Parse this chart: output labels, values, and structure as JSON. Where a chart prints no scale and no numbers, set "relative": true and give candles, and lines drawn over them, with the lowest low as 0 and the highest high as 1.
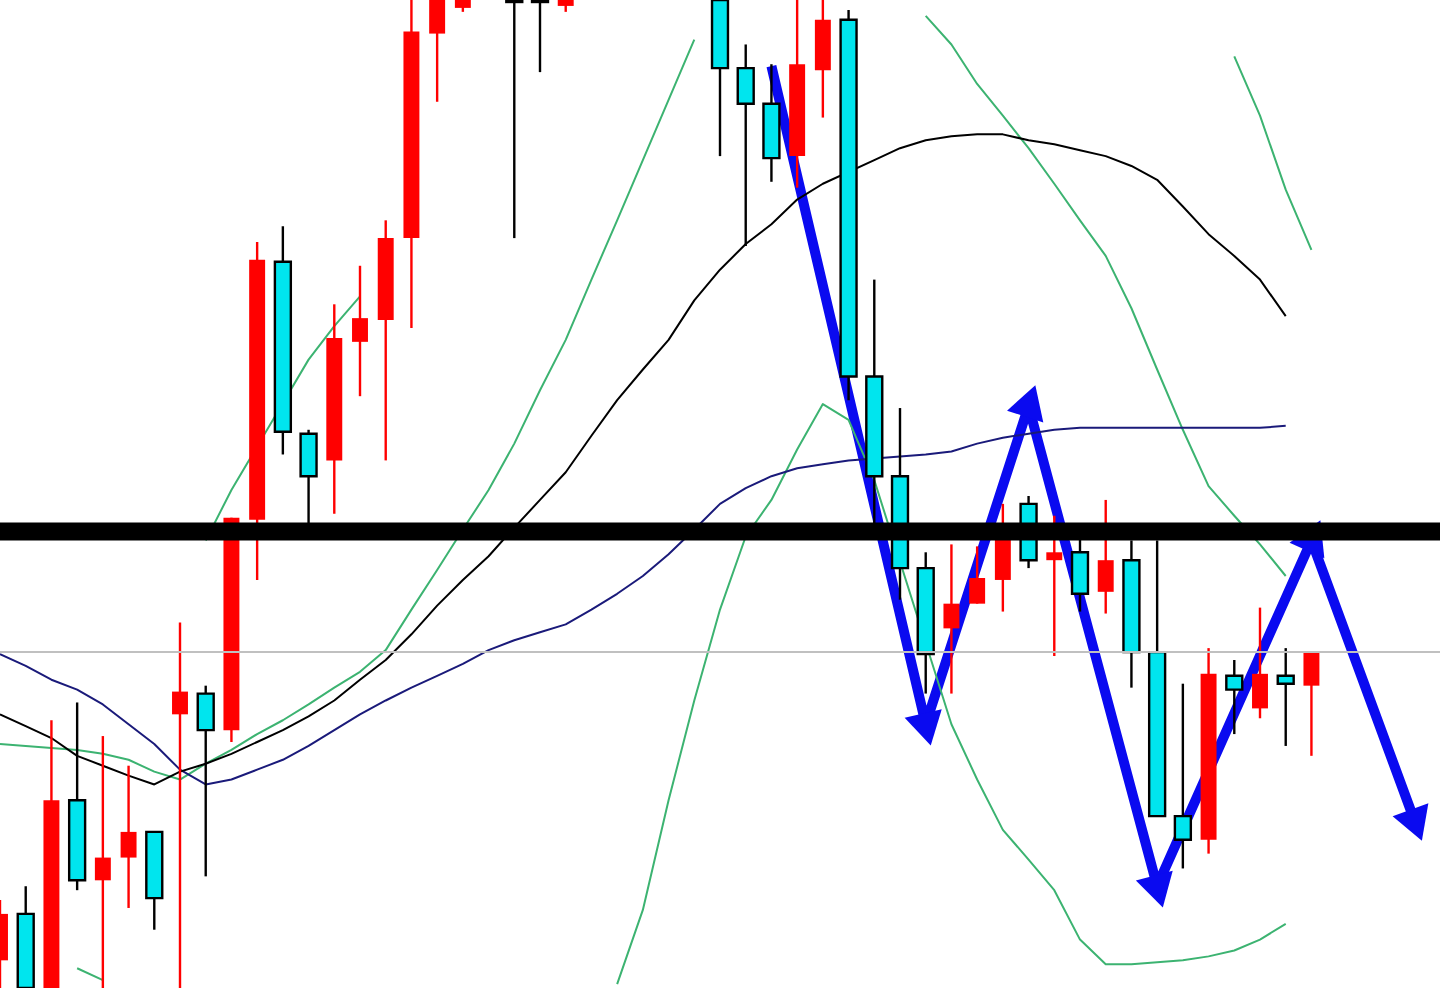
{
  "chart_data": {
    "type": "candlestick",
    "relative": true,
    "grid": false,
    "legend": false,
    "tick_labels": false,
    "categories": [
      null,
      null,
      null,
      null,
      null,
      null,
      null,
      null,
      null,
      null,
      null,
      null,
      null,
      null,
      null,
      null,
      null,
      null,
      null,
      null,
      null,
      null,
      null,
      null,
      null,
      null,
      null,
      null,
      null,
      null,
      null,
      null,
      null,
      null,
      null,
      null,
      null,
      null,
      null,
      null,
      null,
      null,
      null,
      null,
      null,
      null,
      null,
      null,
      null,
      null,
      null,
      null,
      null,
      null,
      null,
      null,
      null
    ],
    "ohlc": [
      [
        0.028,
        0.089,
        0,
        0.075
      ],
      [
        0.075,
        0.103,
        0,
        0
      ],
      [
        0,
        0.271,
        0,
        0.19
      ],
      [
        0.19,
        0.289,
        0.099,
        0.109
      ],
      [
        0.109,
        0.255,
        0,
        0.132
      ],
      [
        0.132,
        0.225,
        0.081,
        0.158
      ],
      [
        0.158,
        0.158,
        0.059,
        0.091
      ],
      [
        0.277,
        0.37,
        0,
        0.3
      ],
      [
        0.298,
        0.306,
        0.113,
        0.261
      ],
      [
        0.261,
        0.476,
        0.249,
        0.476
      ],
      [
        0.474,
        0.755,
        0.413,
        0.737
      ],
      [
        0.735,
        0.771,
        0.54,
        0.563
      ],
      [
        0.561,
        0.565,
        0.47,
        0.518
      ],
      [
        0.534,
        0.692,
        0.48,
        0.658
      ],
      [
        0.654,
        0.731,
        0.599,
        0.678
      ],
      [
        0.676,
        0.777,
        0.534,
        0.759
      ],
      [
        0.759,
        1,
        0.668,
        0.968
      ],
      [
        0.966,
        1,
        0.897,
        1
      ],
      [
        0.992,
        1,
        0.988,
        1
      ],
      null,
      [
        1,
        1,
        0.759,
        1
      ],
      [
        1,
        1,
        0.927,
        1
      ],
      [
        0.994,
        1,
        0.988,
        1
      ],
      null,
      null,
      null,
      null,
      null,
      [
        1,
        1,
        0.842,
        0.931
      ],
      [
        0.931,
        0.955,
        0.751,
        0.895
      ],
      [
        0.895,
        0.935,
        0.816,
        0.84
      ],
      [
        0.842,
        1,
        0.81,
        0.935
      ],
      [
        0.929,
        1,
        0.881,
        0.98
      ],
      [
        0.98,
        0.99,
        0.595,
        0.619
      ],
      [
        0.619,
        0.717,
        0.47,
        0.518
      ],
      [
        0.518,
        0.587,
        0.393,
        0.425
      ],
      [
        0.425,
        0.441,
        0.298,
        0.338
      ],
      [
        0.364,
        0.449,
        0.298,
        0.389
      ],
      [
        0.389,
        0.447,
        0.389,
        0.415
      ],
      [
        0.413,
        0.49,
        0.381,
        0.455
      ],
      [
        0.49,
        0.498,
        0.425,
        0.433
      ],
      [
        0.433,
        0.478,
        0.336,
        0.441
      ],
      [
        0.441,
        0.457,
        0.381,
        0.399
      ],
      [
        0.401,
        0.494,
        0.379,
        0.433
      ],
      [
        0.433,
        0.453,
        0.304,
        0.34
      ],
      [
        0.34,
        0.453,
        0.174,
        0.174
      ],
      [
        0.174,
        0.308,
        0.121,
        0.15
      ],
      [
        0.15,
        0.344,
        0.136,
        0.318
      ],
      [
        0.316,
        0.332,
        0.257,
        0.302
      ],
      [
        0.283,
        0.385,
        0.273,
        0.318
      ],
      [
        0.316,
        0.344,
        0.245,
        0.308
      ],
      [
        0.306,
        0.34,
        0.235,
        0.34
      ],
      null,
      null,
      null,
      null,
      null
    ],
    "colors": [
      "#ff0000",
      "#00e5ee",
      "#ff0000",
      "#00e5ee",
      "#ff0000",
      "#ff0000",
      "#00e5ee",
      "#ff0000",
      "#00e5ee",
      "#ff0000",
      "#ff0000",
      "#00e5ee",
      "#00e5ee",
      "#ff0000",
      "#ff0000",
      "#ff0000",
      "#ff0000",
      "#ff0000",
      "#ff0000",
      null,
      "#00e5ee",
      "#00e5ee",
      "#ff0000",
      null,
      null,
      null,
      null,
      null,
      "#00e5ee",
      "#00e5ee",
      "#00e5ee",
      "#ff0000",
      "#ff0000",
      "#00e5ee",
      "#00e5ee",
      "#00e5ee",
      "#00e5ee",
      "#ff0000",
      "#ff0000",
      "#ff0000",
      "#00e5ee",
      "#ff0000",
      "#00e5ee",
      "#ff0000",
      "#00e5ee",
      "#00e5ee",
      "#00e5ee",
      "#ff0000",
      "#00e5ee",
      "#ff0000",
      "#00e5ee",
      "#ff0000",
      null,
      null,
      null,
      null,
      null
    ],
    "series": [
      {
        "type": "line",
        "color": "#000000",
        "values": [
          0.277,
          0.265,
          0.253,
          0.235,
          0.225,
          0.215,
          0.206,
          0.219,
          0.227,
          0.237,
          0.249,
          0.261,
          0.275,
          0.291,
          0.312,
          0.332,
          0.358,
          0.387,
          0.413,
          0.437,
          0.466,
          0.494,
          0.522,
          0.559,
          0.595,
          0.626,
          0.656,
          0.696,
          0.727,
          0.753,
          0.773,
          0.798,
          0.814,
          null,
          0.838,
          0.85,
          0.858,
          0.862,
          0.864,
          0.864,
          0.858,
          0.854,
          0.848,
          0.842,
          0.832,
          0.818,
          0.791,
          0.763,
          0.741,
          0.717,
          0.68,
          null,
          null,
          null,
          null,
          null,
          null
        ]
      },
      {
        "type": "line",
        "color": "#1a1a7a",
        "values": [
          0.338,
          0.326,
          0.312,
          0.302,
          0.287,
          0.267,
          0.247,
          0.221,
          0.206,
          0.211,
          0.221,
          0.231,
          0.245,
          0.261,
          0.277,
          0.291,
          0.304,
          0.316,
          0.328,
          0.342,
          0.352,
          0.36,
          0.368,
          0.383,
          0.399,
          0.417,
          0.439,
          0.464,
          0.49,
          0.506,
          0.518,
          0.526,
          0.53,
          0.534,
          null,
          0.538,
          0.54,
          0.543,
          0.551,
          0.557,
          0.561,
          0.565,
          0.567,
          0.567,
          0.567,
          0.567,
          0.567,
          0.567,
          0.567,
          0.567,
          0.569,
          null,
          null,
          null,
          null,
          null,
          null
        ]
      },
      {
        "type": "line",
        "color": "#3cb371",
        "values": [
          null,
          null,
          null,
          null,
          null,
          null,
          null,
          null,
          0.453,
          0.504,
          null,
          null,
          0.636,
          0.67,
          0.7,
          null,
          null,
          null,
          null,
          null,
          null,
          null,
          null,
          null,
          null,
          null,
          null,
          null,
          null,
          null,
          null,
          null,
          null,
          null,
          null,
          null,
          null,
          null,
          null,
          null,
          null,
          null,
          null,
          null,
          null,
          null,
          null,
          null,
          null,
          null,
          null,
          null,
          null,
          null,
          null,
          null,
          null
        ]
      },
      {
        "type": "line",
        "color": "#3cb371",
        "values": [
          0.247,
          0.245,
          0.243,
          0.241,
          0.237,
          0.231,
          0.219,
          0.211,
          0.227,
          0.241,
          0.257,
          0.271,
          0.287,
          0.304,
          0.32,
          0.342,
          0.383,
          0.423,
          0.464,
          0.504,
          0.551,
          0.605,
          0.656,
          0.717,
          0.777,
          0.838,
          0.899,
          0.96,
          null,
          null,
          null,
          null,
          null,
          null,
          null,
          null,
          null,
          null,
          null,
          null,
          null,
          null,
          null,
          null,
          null,
          null,
          null,
          null,
          null,
          null,
          null,
          null,
          null,
          null,
          null,
          null,
          null
        ]
      },
      {
        "type": "line",
        "color": "#3cb371",
        "values": [
          null,
          null,
          null,
          0.02,
          0.008,
          null,
          null,
          null,
          null,
          null,
          null,
          null,
          null,
          null,
          null,
          null,
          null,
          null,
          null,
          null,
          null,
          null,
          null,
          null,
          0.004,
          0.079,
          0.19,
          0.291,
          0.383,
          0.457,
          0.494,
          0.545,
          0.591,
          0.575,
          0.514,
          null,
          null,
          0.267,
          0.211,
          0.16,
          0.13,
          0.099,
          0.049,
          0.024,
          0.024,
          0.026,
          0.028,
          0.032,
          0.038,
          0.049,
          0.065,
          null,
          null,
          null,
          null,
          null,
          null
        ]
      },
      {
        "type": "line",
        "color": "#3cb371",
        "values": [
          null,
          null,
          null,
          null,
          null,
          null,
          null,
          null,
          null,
          null,
          null,
          null,
          null,
          null,
          null,
          null,
          null,
          null,
          null,
          null,
          null,
          null,
          null,
          null,
          null,
          null,
          null,
          null,
          null,
          null,
          null,
          null,
          null,
          null,
          null,
          null,
          0.984,
          0.955,
          0.915,
          0.883,
          0.85,
          0.814,
          0.777,
          0.741,
          0.688,
          0.626,
          0.565,
          0.508,
          0.478,
          0.449,
          0.417,
          null,
          null,
          null,
          null,
          null,
          null
        ]
      },
      {
        "type": "line",
        "color": "#3cb371",
        "values": [
          null,
          null,
          null,
          null,
          null,
          null,
          null,
          null,
          null,
          null,
          null,
          null,
          null,
          null,
          null,
          null,
          null,
          null,
          null,
          null,
          null,
          null,
          null,
          null,
          null,
          null,
          null,
          null,
          null,
          null,
          null,
          null,
          null,
          null,
          null,
          null,
          null,
          null,
          null,
          null,
          null,
          null,
          null,
          null,
          null,
          null,
          null,
          null,
          0.943,
          0.883,
          0.808,
          0.747,
          null,
          null,
          null,
          null,
          null
        ]
      },
      {
        "type": "line",
        "color": "#0a0af0",
        "marker": "triangle",
        "values": [
          null,
          null,
          null,
          null,
          null,
          null,
          null,
          null,
          null,
          null,
          null,
          null,
          null,
          null,
          null,
          null,
          null,
          null,
          null,
          null,
          null,
          null,
          null,
          null,
          null,
          null,
          null,
          null,
          null,
          null,
          0.933,
          null,
          null,
          null,
          null,
          null,
          0.267,
          null,
          null,
          null,
          0.589,
          null,
          null,
          null,
          null,
          0.103,
          null,
          null,
          null,
          null,
          null,
          0.453,
          null,
          null,
          null,
          0.17,
          null
        ]
      }
    ],
    "ref_lines": [
      {
        "axis": "y",
        "value": 0.462,
        "color": "#000000"
      },
      {
        "axis": "y",
        "value": 0.34,
        "color": "#c0c0c0"
      }
    ]
  }
}
